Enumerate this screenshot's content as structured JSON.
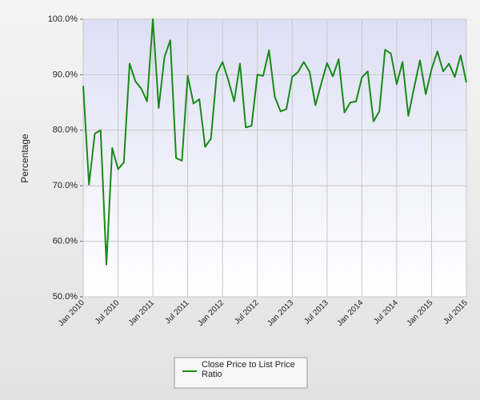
{
  "chart_data": {
    "type": "line",
    "y_label": "Percentage",
    "categories": [
      "Jan 2010",
      null,
      null,
      null,
      null,
      null,
      "Jul 2010",
      null,
      null,
      null,
      null,
      null,
      "Jan 2011",
      null,
      null,
      null,
      null,
      null,
      "Jul 2011",
      null,
      null,
      null,
      null,
      null,
      "Jan 2012",
      null,
      null,
      null,
      null,
      null,
      "Jul 2012",
      null,
      null,
      null,
      null,
      null,
      "Jan 2013",
      null,
      null,
      null,
      null,
      null,
      "Jul 2013",
      null,
      null,
      null,
      null,
      null,
      "Jan 2014",
      null,
      null,
      null,
      null,
      null,
      "Jul 2014",
      null,
      null,
      null,
      null,
      null,
      "Jan 2015",
      null,
      null,
      null,
      null,
      null,
      "Jul 2015"
    ],
    "series": [
      {
        "name": "Close Price to List Price Ratio",
        "color": "#1a8a1a",
        "values": [
          88,
          70.2,
          79.4,
          80,
          55.8,
          76.8,
          73,
          74.2,
          92,
          88.8,
          87.5,
          85.2,
          100,
          84,
          93.2,
          96.2,
          75,
          74.5,
          89.8,
          84.8,
          85.6,
          77,
          78.5,
          90.2,
          92.3,
          89,
          85.2,
          92,
          80.5,
          80.8,
          90,
          89.8,
          94.4,
          86,
          83.4,
          83.8,
          89.6,
          90.5,
          92.3,
          90.5,
          84.5,
          88.4,
          92.1,
          89.7,
          92.8,
          83.2,
          85,
          85.2,
          89.5,
          90.6,
          81.6,
          83.4,
          94.5,
          93.8,
          88.3,
          92.3,
          82.6,
          87.7,
          92.6,
          86.5,
          91,
          94.2,
          90.6,
          92,
          89.6,
          93.5,
          88.6
        ]
      }
    ],
    "ylim": [
      50,
      100
    ],
    "yticks": [
      {
        "value": 50,
        "label": "50.0%"
      },
      {
        "value": 60,
        "label": "60.0%"
      },
      {
        "value": 70,
        "label": "70.0%"
      },
      {
        "value": 80,
        "label": "80.0%"
      },
      {
        "value": 90,
        "label": "90.0%"
      },
      {
        "value": 100,
        "label": "100.0%"
      }
    ],
    "grid": true
  }
}
